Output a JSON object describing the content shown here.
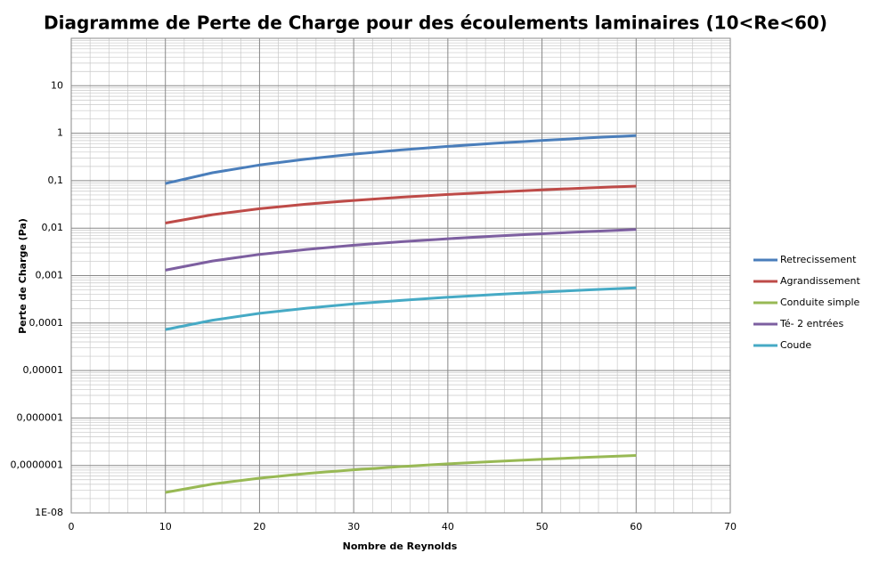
{
  "chart_data": {
    "type": "line",
    "title": "Diagramme de Perte de Charge pour des écoulements laminaires (10<Re<60)",
    "x_label": "Nombre de Reynolds",
    "y_label": "Perte de Charge (Pa)",
    "x": [
      10,
      15,
      20,
      25,
      30,
      35,
      40,
      45,
      50,
      55,
      60
    ],
    "series": [
      {
        "name": "Retrecissement",
        "color": "#4a7ebb",
        "values": [
          0.087,
          0.147,
          0.214,
          0.286,
          0.363,
          0.444,
          0.527,
          0.614,
          0.705,
          0.798,
          0.893
        ]
      },
      {
        "name": "Agrandissement",
        "color": "#be4b48",
        "values": [
          0.0128,
          0.0192,
          0.0256,
          0.032,
          0.0384,
          0.0448,
          0.0512,
          0.0576,
          0.064,
          0.0704,
          0.0768
        ]
      },
      {
        "name": "Conduite simple",
        "color": "#98b954",
        "values": [
          2.7e-08,
          4.05e-08,
          5.4e-08,
          6.75e-08,
          8.1e-08,
          9.45e-08,
          1.08e-07,
          1.215e-07,
          1.35e-07,
          1.485e-07,
          1.62e-07
        ]
      },
      {
        "name": "Té- 2 entrées",
        "color": "#7d5fa0",
        "values": [
          0.0013,
          0.00203,
          0.00279,
          0.00356,
          0.00436,
          0.00516,
          0.00597,
          0.0068,
          0.00763,
          0.00848,
          0.00933
        ]
      },
      {
        "name": "Coude",
        "color": "#46aac5",
        "values": [
          7.3e-05,
          0.000115,
          0.00016,
          0.000206,
          0.000253,
          0.0003,
          0.00035,
          0.0004,
          0.00045,
          0.0005,
          0.00055
        ]
      }
    ],
    "xlim": [
      0,
      70
    ],
    "xticks": [
      0,
      10,
      20,
      30,
      40,
      50,
      60,
      70
    ],
    "ylim": [
      1e-08,
      100
    ],
    "log_y": true,
    "yticks": [
      {
        "value": 1e-08,
        "label": "1E-08"
      },
      {
        "value": 1e-07,
        "label": "0,0000001"
      },
      {
        "value": 1e-06,
        "label": "0,000001"
      },
      {
        "value": 1e-05,
        "label": "0,00001"
      },
      {
        "value": 0.0001,
        "label": "0,0001"
      },
      {
        "value": 0.001,
        "label": "0,001"
      },
      {
        "value": 0.01,
        "label": "0,01"
      },
      {
        "value": 0.1,
        "label": "0,1"
      },
      1,
      10
    ],
    "grid": true,
    "minor_grid": true,
    "legend": "right"
  }
}
